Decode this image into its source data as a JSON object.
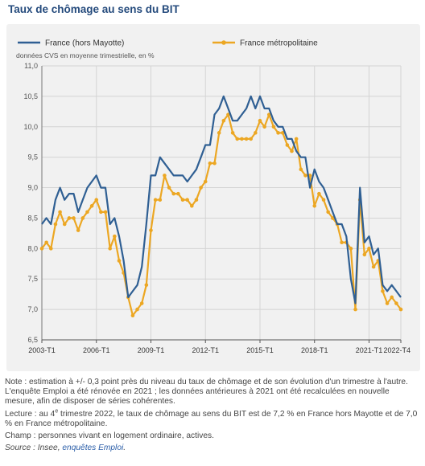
{
  "title": "Taux de chômage au sens du BIT",
  "notes": {
    "note": "Note : estimation à +/- 0,3 point près du niveau du taux de chômage et de son évolution d'un trimestre à l'autre. L'enquête Emploi a été rénovée en 2021 ; les données antérieures à 2021 ont été recalculées en nouvelle mesure, afin de disposer de séries cohérentes.",
    "lecture_prefix": "Lecture : au 4",
    "lecture_sup": "e",
    "lecture_suffix": " trimestre 2022, le taux de chômage au sens du BIT est de 7,2 % en France hors Mayotte et de 7,0 % en France métropolitaine.",
    "champ": "Champ : personnes vivant en logement ordinaire, actives.",
    "source_prefix": "Source : Insee, ",
    "source_link": "enquêtes Emploi",
    "source_suffix": "."
  },
  "chart_data": {
    "type": "line",
    "subtitle": "données CVS en moyenne trimestrielle, en %",
    "ylim": [
      6.5,
      11.0
    ],
    "yticks": [
      "6,5",
      "7,0",
      "7,5",
      "8,0",
      "8,5",
      "9,0",
      "9,5",
      "10,0",
      "10,5",
      "11,0"
    ],
    "ytick_values": [
      6.5,
      7.0,
      7.5,
      8.0,
      8.5,
      9.0,
      9.5,
      10.0,
      10.5,
      11.0
    ],
    "xticks": [
      {
        "label": "2003-T1",
        "index": 0
      },
      {
        "label": "2006-T1",
        "index": 12
      },
      {
        "label": "2009-T1",
        "index": 24
      },
      {
        "label": "2012-T1",
        "index": 36
      },
      {
        "label": "2015-T1",
        "index": 48
      },
      {
        "label": "2018-T1",
        "index": 60
      },
      {
        "label": "2021-T1",
        "index": 72
      },
      {
        "label": "2022-T4",
        "index": 79
      }
    ],
    "x_start": "2003-T1",
    "x_end": "2022-T4",
    "grid": true,
    "legend_position": "top",
    "series": [
      {
        "name": "France (hors Mayotte)",
        "color": "#2f5f93",
        "markers": false,
        "values": [
          8.4,
          8.5,
          8.4,
          8.8,
          9.0,
          8.8,
          8.9,
          8.9,
          8.6,
          8.8,
          9.0,
          9.1,
          9.2,
          9.0,
          9.0,
          8.4,
          8.5,
          8.2,
          7.8,
          7.2,
          7.3,
          7.4,
          7.7,
          8.4,
          9.2,
          9.2,
          9.5,
          9.4,
          9.3,
          9.2,
          9.2,
          9.2,
          9.1,
          9.2,
          9.3,
          9.5,
          9.7,
          9.7,
          10.2,
          10.3,
          10.5,
          10.3,
          10.1,
          10.1,
          10.2,
          10.3,
          10.5,
          10.3,
          10.5,
          10.3,
          10.3,
          10.1,
          10.0,
          10.0,
          9.8,
          9.8,
          9.6,
          9.5,
          9.5,
          9.0,
          9.3,
          9.1,
          9.0,
          8.8,
          8.6,
          8.4,
          8.4,
          8.2,
          7.5,
          7.1,
          9.0,
          8.1,
          8.2,
          7.9,
          8.0,
          7.4,
          7.3,
          7.4,
          7.3,
          7.2
        ]
      },
      {
        "name": "France métropolitaine",
        "color": "#eca723",
        "markers": true,
        "values": [
          8.0,
          8.1,
          8.0,
          8.4,
          8.6,
          8.4,
          8.5,
          8.5,
          8.3,
          8.5,
          8.6,
          8.7,
          8.8,
          8.6,
          8.6,
          8.0,
          8.2,
          7.8,
          7.6,
          7.2,
          6.9,
          7.0,
          7.1,
          7.4,
          8.3,
          8.8,
          8.8,
          9.2,
          9.0,
          8.9,
          8.9,
          8.8,
          8.8,
          8.7,
          8.8,
          9.0,
          9.1,
          9.4,
          9.4,
          9.9,
          10.1,
          10.2,
          9.9,
          9.8,
          9.8,
          9.8,
          9.8,
          9.9,
          10.1,
          10.0,
          10.2,
          10.0,
          9.9,
          9.9,
          9.7,
          9.6,
          9.8,
          9.3,
          9.2,
          9.2,
          8.7,
          8.9,
          8.8,
          8.6,
          8.5,
          8.4,
          8.1,
          8.1,
          8.0,
          7.0,
          8.8,
          7.9,
          8.0,
          7.7,
          7.8,
          7.3,
          7.1,
          7.2,
          7.1,
          7.0
        ]
      }
    ]
  }
}
